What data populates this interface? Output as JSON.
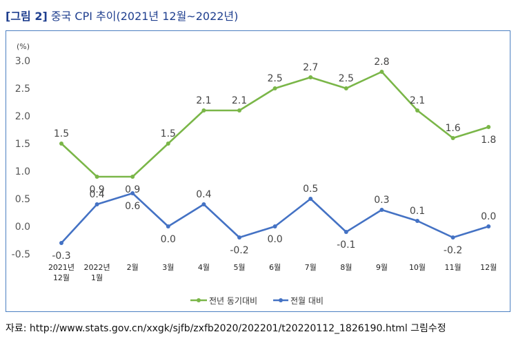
{
  "figure": {
    "tag": "[그림 2]",
    "title": "중국 CPI 추이(2021년 12월~2022년)"
  },
  "source": "자료: http://www.stats.gov.cn/xxgk/sjfb/zxfb2020/202201/t20220112_1826190.html 그림수정",
  "chart_data": {
    "type": "line",
    "unit_label": "(%)",
    "categories": [
      [
        "2021년",
        "12월"
      ],
      [
        "2022년",
        "1월"
      ],
      [
        "2월"
      ],
      [
        "3월"
      ],
      [
        "4월"
      ],
      [
        "5월"
      ],
      [
        "6월"
      ],
      [
        "7월"
      ],
      [
        "8월"
      ],
      [
        "9월"
      ],
      [
        "10월"
      ],
      [
        "11월"
      ],
      [
        "12월"
      ]
    ],
    "yticks": [
      "3.0",
      "2.5",
      "2.0",
      "1.5",
      "1.0",
      "0.5",
      "0.0",
      "-0.5"
    ],
    "ylim": [
      -0.5,
      3.0
    ],
    "grid": false,
    "legend_position": "bottom",
    "series": [
      {
        "name": "전년 동기대비",
        "color": "#7ab648",
        "values": [
          1.5,
          0.9,
          0.9,
          1.5,
          2.1,
          2.1,
          2.5,
          2.7,
          2.5,
          2.8,
          2.1,
          1.6,
          1.8
        ],
        "labels": [
          "1.5",
          "0.9",
          "0.9",
          "1.5",
          "2.1",
          "2.1",
          "2.5",
          "2.7",
          "2.5",
          "2.8",
          "2.1",
          "1.6",
          "1.8"
        ]
      },
      {
        "name": "전월 대비",
        "color": "#4472c4",
        "values": [
          -0.3,
          0.4,
          0.6,
          0.0,
          0.4,
          -0.2,
          0.0,
          0.5,
          -0.1,
          0.3,
          0.1,
          -0.2,
          0.0
        ],
        "labels": [
          "-0.3",
          "0.4",
          "0.6",
          "0.0",
          "0.4",
          "-0.2",
          "0.0",
          "0.5",
          "-0.1",
          "0.3",
          "0.1",
          "-0.2",
          "0.0"
        ]
      }
    ]
  }
}
